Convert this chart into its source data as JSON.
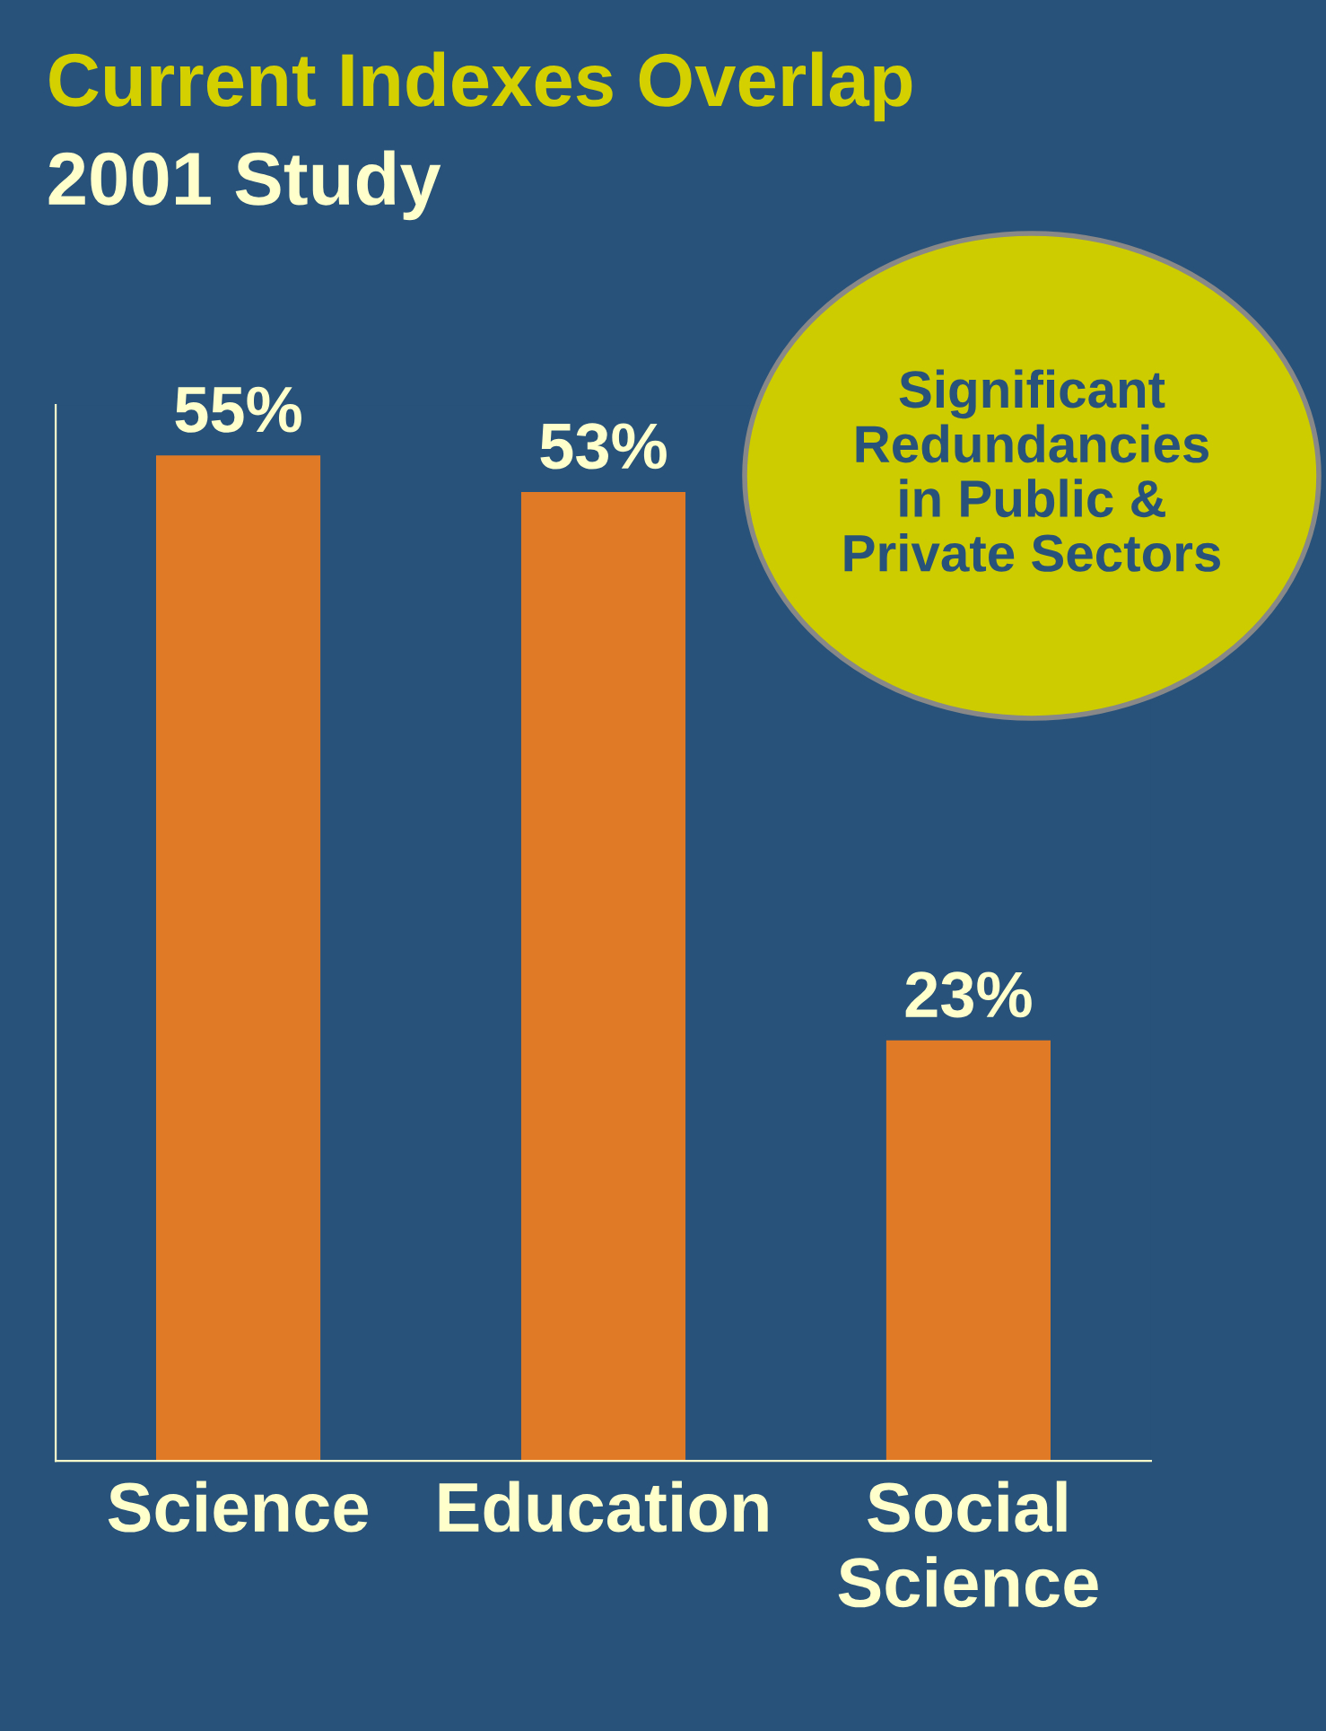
{
  "chart_data": {
    "type": "bar",
    "title": "Current Indexes Overlap",
    "subtitle": "2001 Study",
    "categories": [
      "Science",
      "Education",
      "Social\nScience"
    ],
    "values": [
      55,
      53,
      23
    ],
    "value_labels": [
      "55%",
      "53%",
      "23%"
    ],
    "color": "#e07a26",
    "grid": false,
    "annotations": [
      "Significant\nRedundancies\nin Public &\nPrivate Sectors"
    ]
  }
}
